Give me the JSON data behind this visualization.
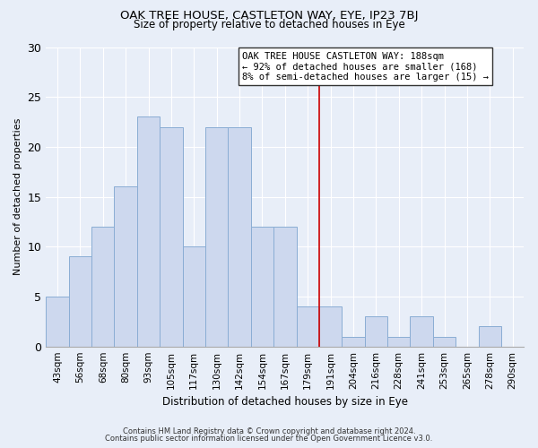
{
  "title1": "OAK TREE HOUSE, CASTLETON WAY, EYE, IP23 7BJ",
  "title2": "Size of property relative to detached houses in Eye",
  "xlabel": "Distribution of detached houses by size in Eye",
  "ylabel": "Number of detached properties",
  "bar_labels": [
    "43sqm",
    "56sqm",
    "68sqm",
    "80sqm",
    "93sqm",
    "105sqm",
    "117sqm",
    "130sqm",
    "142sqm",
    "154sqm",
    "167sqm",
    "179sqm",
    "191sqm",
    "204sqm",
    "216sqm",
    "228sqm",
    "241sqm",
    "253sqm",
    "265sqm",
    "278sqm",
    "290sqm"
  ],
  "bar_values": [
    5,
    9,
    12,
    16,
    23,
    22,
    10,
    22,
    22,
    12,
    12,
    4,
    4,
    1,
    3,
    1,
    3,
    1,
    0,
    2,
    0
  ],
  "bar_color": "#cdd8ee",
  "bar_edge_color": "#8aadd4",
  "vline_color": "#cc0000",
  "annotation_title": "OAK TREE HOUSE CASTLETON WAY: 188sqm",
  "annotation_line1": "← 92% of detached houses are smaller (168)",
  "annotation_line2": "8% of semi-detached houses are larger (15) →",
  "annotation_box_color": "#ffffff",
  "annotation_box_edge": "#333333",
  "ylim": [
    0,
    30
  ],
  "yticks": [
    0,
    5,
    10,
    15,
    20,
    25,
    30
  ],
  "footnote1": "Contains HM Land Registry data © Crown copyright and database right 2024.",
  "footnote2": "Contains public sector information licensed under the Open Government Licence v3.0.",
  "background_color": "#e8eef8",
  "grid_color": "#ffffff",
  "title1_fontsize": 9.5,
  "title2_fontsize": 8.5,
  "ylabel_fontsize": 8.0,
  "xlabel_fontsize": 8.5,
  "annot_fontsize": 7.5,
  "footnote_fontsize": 6.0,
  "vline_index": 12
}
